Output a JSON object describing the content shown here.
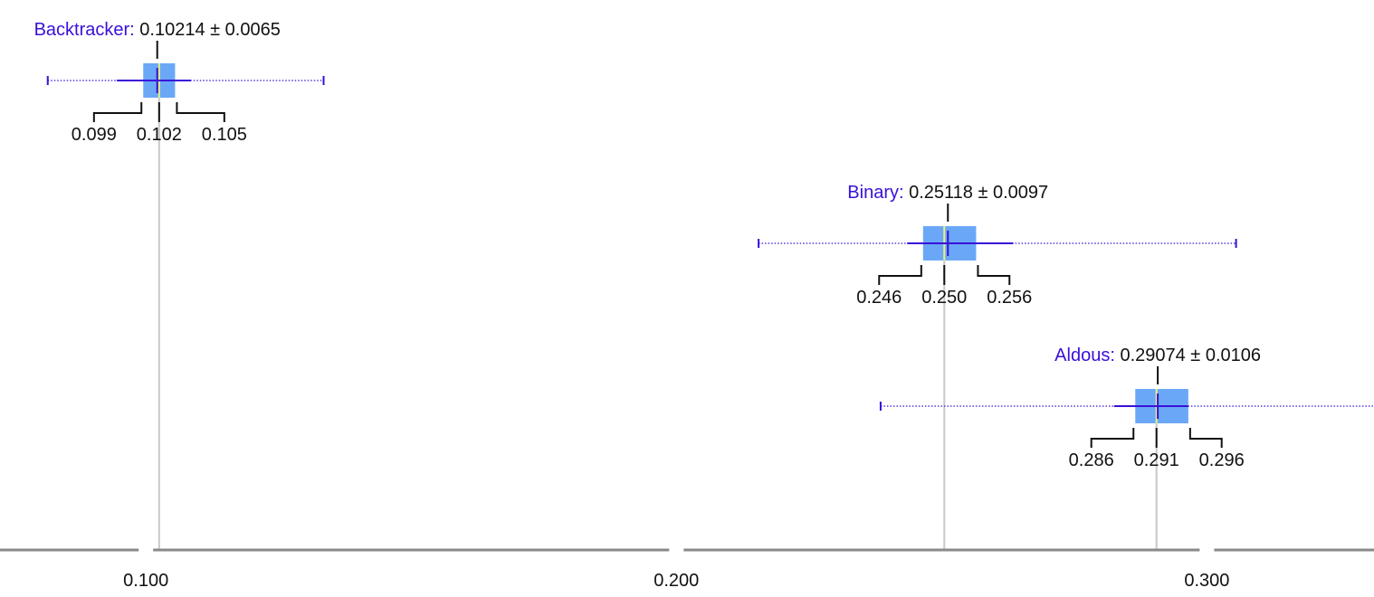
{
  "chart_data": {
    "type": "boxplot",
    "xlim": [
      0.0725,
      0.3315
    ],
    "x_ticks": [
      {
        "value": 0.1,
        "label": "0.100"
      },
      {
        "value": 0.2,
        "label": "0.200"
      },
      {
        "value": 0.3,
        "label": "0.300"
      }
    ],
    "series": [
      {
        "name": "Backtracker:",
        "mean_label": "0.10214 ± 0.0065",
        "mean": 0.10214,
        "std": 0.0065,
        "min": 0.0815,
        "max": 0.1335,
        "whisker_low": 0.0945,
        "whisker_high": 0.1085,
        "q1": 0.0995,
        "median": 0.1025,
        "q3": 0.1055,
        "stats": [
          {
            "value": 0.099,
            "label": "0.099"
          },
          {
            "value": 0.102,
            "label": "0.102"
          },
          {
            "value": 0.105,
            "label": "0.105"
          }
        ]
      },
      {
        "name": "Binary:",
        "mean_label": "0.25118 ± 0.0097",
        "mean": 0.25118,
        "std": 0.0097,
        "min": 0.2155,
        "max": 0.3055,
        "whisker_low": 0.2435,
        "whisker_high": 0.2635,
        "q1": 0.2465,
        "median": 0.2505,
        "q3": 0.2565,
        "stats": [
          {
            "value": 0.246,
            "label": "0.246"
          },
          {
            "value": 0.25,
            "label": "0.250"
          },
          {
            "value": 0.256,
            "label": "0.256"
          }
        ]
      },
      {
        "name": "Aldous:",
        "mean_label": "0.29074 ± 0.0106",
        "mean": 0.29074,
        "std": 0.0106,
        "min": 0.2385,
        "max": 0.3345,
        "whisker_low": 0.2825,
        "whisker_high": 0.2965,
        "q1": 0.2865,
        "median": 0.2905,
        "q3": 0.2965,
        "stats": [
          {
            "value": 0.286,
            "label": "0.286"
          },
          {
            "value": 0.291,
            "label": "0.291"
          },
          {
            "value": 0.296,
            "label": "0.296"
          }
        ]
      }
    ],
    "colors": {
      "box": "#6aa8f7",
      "whisker": "#3a10d8",
      "range": "#3a10d8",
      "median": "#e8f27a",
      "name_label": "#3a10d8",
      "guide": "#c8c8c8",
      "axis": "#8a8a8a",
      "text": "#111111"
    }
  }
}
